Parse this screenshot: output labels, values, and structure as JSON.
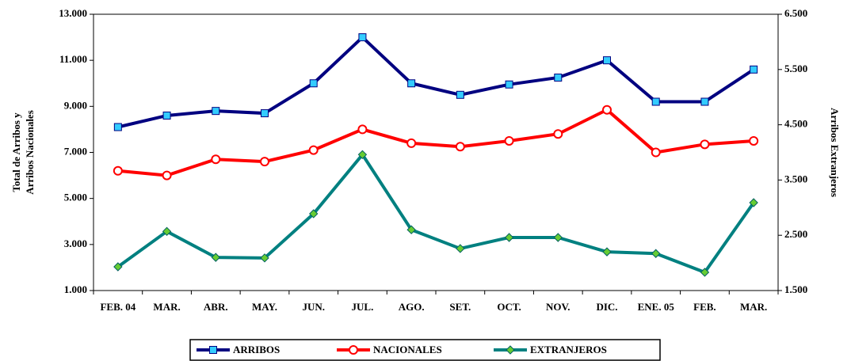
{
  "chart_data": {
    "type": "line",
    "ylabel": [
      "Total de Arribos y",
      "Arribos Nacionales"
    ],
    "y2label": "Arribos Extranjeros",
    "categories": [
      "FEB. 04",
      "MAR.",
      "ABR.",
      "MAY.",
      "JUN.",
      "JUL.",
      "AGO.",
      "SET.",
      "OCT.",
      "NOV.",
      "DIC.",
      "ENE. 05",
      "FEB.",
      "MAR."
    ],
    "ylim": [
      1000,
      13000
    ],
    "yticks": [
      {
        "value": 1000,
        "label": "1.000"
      },
      {
        "value": 3000,
        "label": "3.000"
      },
      {
        "value": 5000,
        "label": "5.000"
      },
      {
        "value": 7000,
        "label": "7.000"
      },
      {
        "value": 9000,
        "label": "9.000"
      },
      {
        "value": 11000,
        "label": "11.000"
      },
      {
        "value": 13000,
        "label": "13.000"
      }
    ],
    "y2lim": [
      1500,
      6500
    ],
    "y2ticks": [
      {
        "value": 1500,
        "label": "1.500"
      },
      {
        "value": 2500,
        "label": "2.500"
      },
      {
        "value": 3500,
        "label": "3.500"
      },
      {
        "value": 4500,
        "label": "4.500"
      },
      {
        "value": 5500,
        "label": "5.500"
      },
      {
        "value": 6500,
        "label": "6.500"
      }
    ],
    "series": [
      {
        "name": "ARRIBOS",
        "color": "#000080",
        "marker": "square",
        "marker_color": "#33ccff",
        "values": [
          8100,
          8600,
          8800,
          8700,
          10000,
          12000,
          10000,
          9500,
          9950,
          10250,
          11000,
          9200,
          9200,
          10600
        ]
      },
      {
        "name": "NACIONALES",
        "color": "#ff0000",
        "marker": "circle",
        "marker_color": "#ffffff",
        "values": [
          6200,
          6000,
          6700,
          6600,
          7100,
          8000,
          7400,
          7250,
          7500,
          7800,
          8850,
          7000,
          7350,
          7500
        ]
      },
      {
        "name": "EXTRANJEROS",
        "color": "#008080",
        "marker": "diamond",
        "marker_color": "#66cc33",
        "axis": "y2",
        "values": [
          1930,
          2570,
          2100,
          2090,
          2890,
          3960,
          2600,
          2260,
          2460,
          2460,
          2200,
          2170,
          1830,
          3090
        ]
      }
    ]
  }
}
